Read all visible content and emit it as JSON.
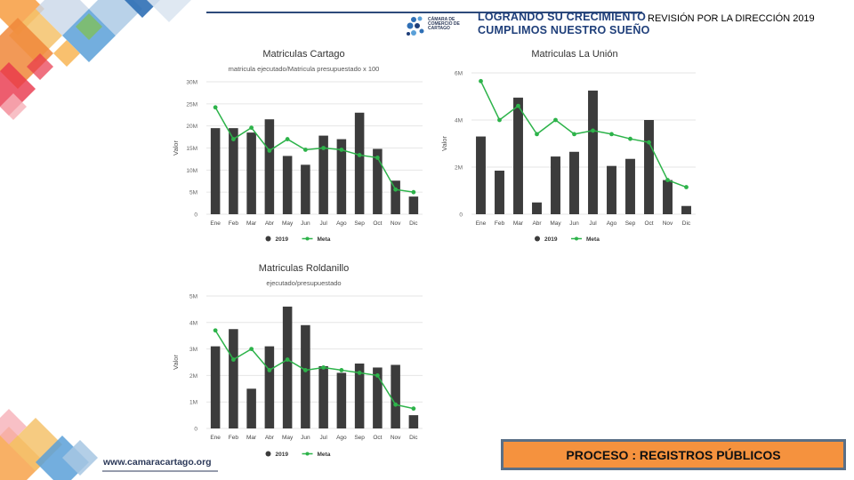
{
  "header": {
    "slogan_line1": "LOGRANDO SU CRECIMIENTO",
    "slogan_line2": "CUMPLIMOS NUESTRO SUEÑO",
    "logo_text": "CÁMARA DE COMERCIO DE CARTAGO",
    "review_title": "REVISIÓN POR LA DIRECCIÓN 2019"
  },
  "footer": {
    "website": "www.camaracartago.org",
    "process": "PROCESO : REGISTROS PÚBLICOS"
  },
  "colors": {
    "bar": "#3c3c3c",
    "line": "#2db34a",
    "orange": "#f5923e",
    "navy": "#1f3f7a"
  },
  "chart_data": [
    {
      "type": "bar",
      "title": "Matriculas Cartago",
      "subtitle": "matricula ejecutado/Matricula presupuestado x 100",
      "xlabel": "",
      "ylabel": "Valor",
      "categories": [
        "Ene",
        "Feb",
        "Mar",
        "Abr",
        "May",
        "Jun",
        "Jul",
        "Ago",
        "Sep",
        "Oct",
        "Nov",
        "Dic"
      ],
      "yticks": [
        "0",
        "5M",
        "10M",
        "15M",
        "20M",
        "25M",
        "30M"
      ],
      "ylim": [
        0,
        30
      ],
      "series": [
        {
          "name": "2019",
          "kind": "bar",
          "values": [
            19.5,
            19.5,
            18.5,
            21.5,
            13.2,
            11.2,
            17.8,
            17.0,
            23.0,
            14.8,
            7.6,
            4.0
          ]
        },
        {
          "name": "Meta",
          "kind": "line",
          "values": [
            24.2,
            17.0,
            19.6,
            14.4,
            17.0,
            14.6,
            15.0,
            14.6,
            13.4,
            12.8,
            5.6,
            5.0
          ]
        }
      ],
      "grid": true,
      "legend": "bottom"
    },
    {
      "type": "bar",
      "title": "Matriculas La Unión",
      "subtitle": "",
      "xlabel": "",
      "ylabel": "Valor",
      "categories": [
        "Ene",
        "Feb",
        "Mar",
        "Abr",
        "May",
        "Jun",
        "Jul",
        "Ago",
        "Sep",
        "Oct",
        "Nov",
        "Dic"
      ],
      "yticks": [
        "0",
        "2M",
        "4M",
        "6M"
      ],
      "ylim": [
        0,
        6
      ],
      "series": [
        {
          "name": "2019",
          "kind": "bar",
          "values": [
            3.3,
            1.85,
            4.95,
            0.5,
            2.45,
            2.65,
            5.25,
            2.05,
            2.35,
            4.0,
            1.45,
            0.35
          ]
        },
        {
          "name": "Meta",
          "kind": "line",
          "values": [
            5.65,
            4.0,
            4.6,
            3.4,
            4.0,
            3.4,
            3.55,
            3.4,
            3.2,
            3.05,
            1.45,
            1.15
          ]
        }
      ],
      "grid": true,
      "legend": "bottom"
    },
    {
      "type": "bar",
      "title": "Matriculas Roldanillo",
      "subtitle": "ejecutado/presupuestado",
      "xlabel": "",
      "ylabel": "Valor",
      "categories": [
        "Ene",
        "Feb",
        "Mar",
        "Abr",
        "May",
        "Jun",
        "Jul",
        "Ago",
        "Sep",
        "Oct",
        "Nov",
        "Dic"
      ],
      "yticks": [
        "0",
        "1M",
        "2M",
        "3M",
        "4M",
        "5M"
      ],
      "ylim": [
        0,
        5
      ],
      "series": [
        {
          "name": "2019",
          "kind": "bar",
          "values": [
            3.1,
            3.75,
            1.5,
            3.1,
            4.6,
            3.9,
            2.35,
            2.1,
            2.45,
            2.3,
            2.4,
            0.5
          ]
        },
        {
          "name": "Meta",
          "kind": "line",
          "values": [
            3.7,
            2.6,
            3.0,
            2.2,
            2.6,
            2.2,
            2.3,
            2.2,
            2.1,
            2.0,
            0.9,
            0.75
          ]
        }
      ],
      "grid": true,
      "legend": "bottom"
    }
  ]
}
